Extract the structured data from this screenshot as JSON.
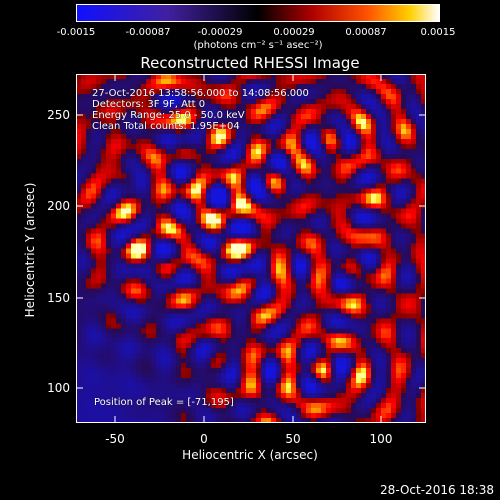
{
  "colorbar": {
    "ticks": [
      "-0.0015",
      "-0.00087",
      "-0.00029",
      "0.00029",
      "0.00087",
      "0.0015"
    ],
    "units": "(photons cm⁻² s⁻¹ asec⁻²)"
  },
  "title": "Reconstructed RHESSI Image",
  "annotations": {
    "line1": "27-Oct-2016 13:58:56.000 to 14:08:56.000",
    "line2": "Detectors: 3F 9F, Att 0",
    "line3": "Energy Range: 25.0 - 50.0 keV",
    "line4": "Clean    Total counts: 1.95E+04",
    "peak": "Position of Peak = [-71,195]"
  },
  "axes": {
    "xlabel": "Heliocentric X (arcsec)",
    "ylabel": "Heliocentric Y (arcsec)",
    "xticks": [
      "-50",
      "0",
      "50",
      "100"
    ],
    "yticks": [
      "100",
      "150",
      "200",
      "250"
    ],
    "xrange": [
      -72,
      125
    ],
    "yrange": [
      82,
      272
    ]
  },
  "timestamp": "28-Oct-2016 18:38",
  "colors": {
    "low": "#1c10ff",
    "mid": "#000000",
    "high": "#ffffff",
    "hot": "#ff2000"
  }
}
